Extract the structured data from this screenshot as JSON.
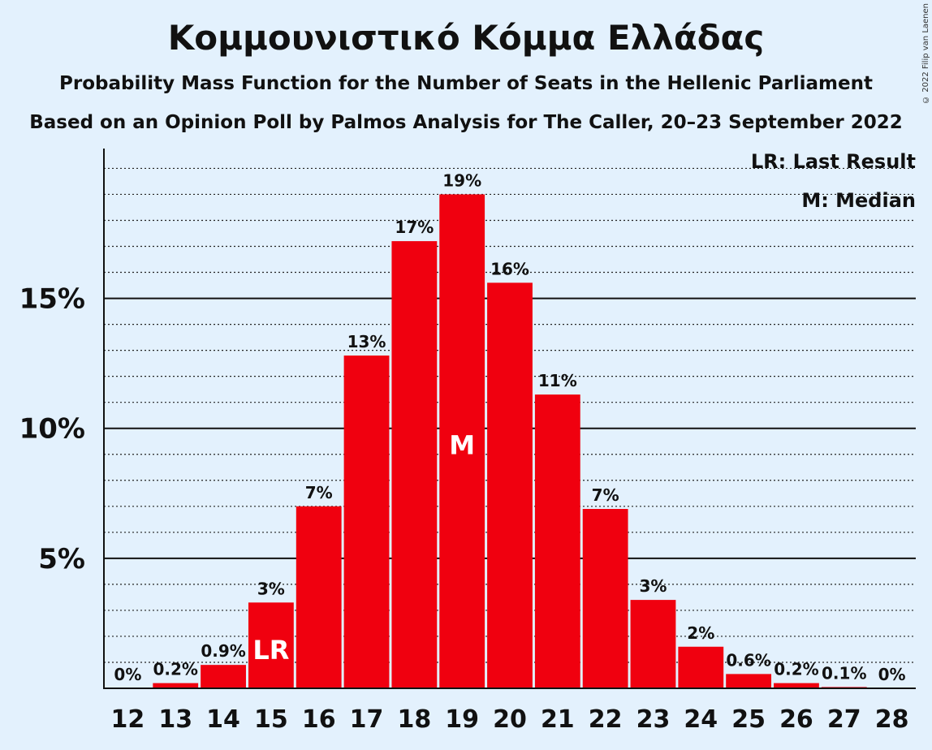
{
  "title": "Κομμουνιστικό Κόμμα Ελλάδας",
  "subtitle1": "Probability Mass Function for the Number of Seats in the Hellenic Parliament",
  "subtitle2": "Based on an Opinion Poll by Palmos Analysis for The Caller, 20–23 September 2022",
  "copyright": "© 2022 Filip van Laenen",
  "legend": {
    "last_result": "LR: Last Result",
    "median": "M: Median"
  },
  "colors": {
    "bar": "#f0000f",
    "background": "#e3f1fd"
  },
  "chart_data": {
    "type": "bar",
    "categories": [
      "12",
      "13",
      "14",
      "15",
      "16",
      "17",
      "18",
      "19",
      "20",
      "21",
      "22",
      "23",
      "24",
      "25",
      "26",
      "27",
      "28"
    ],
    "values": [
      0,
      0.2,
      0.9,
      3.3,
      7.0,
      12.8,
      17.2,
      19.0,
      15.6,
      11.3,
      6.9,
      3.4,
      1.6,
      0.55,
      0.2,
      0.05,
      0
    ],
    "data_labels": [
      "0%",
      "0.2%",
      "0.9%",
      "3%",
      "7%",
      "13%",
      "17%",
      "19%",
      "16%",
      "11%",
      "7%",
      "3%",
      "2%",
      "0.6%",
      "0.2%",
      "0.1%",
      "0%"
    ],
    "ylim": [
      0,
      20.7
    ],
    "yticks": [
      5,
      10,
      15
    ],
    "ytick_labels": [
      "5%",
      "10%",
      "15%"
    ],
    "minor_grid_step": 1,
    "last_result_category": "15",
    "last_result_marker": "LR",
    "median_category": "19",
    "median_marker": "M",
    "grid": true,
    "legend_position": "top-right"
  }
}
